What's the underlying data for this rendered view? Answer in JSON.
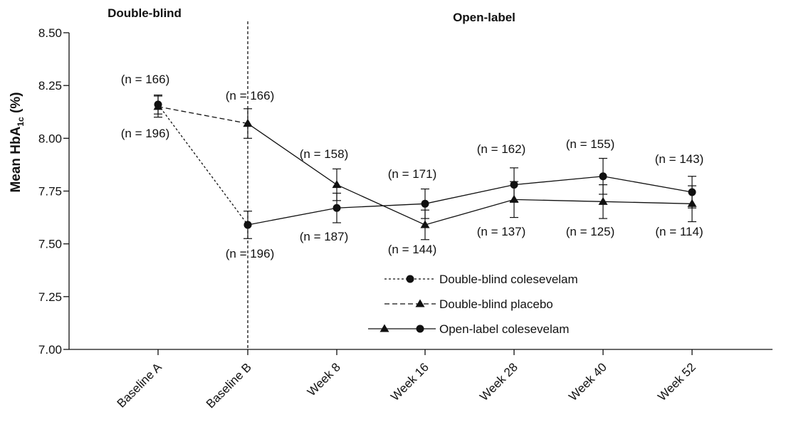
{
  "chart_data": {
    "type": "line",
    "ylabel": {
      "main": "Mean HbA",
      "sub": "1c",
      "suffix": " (%)"
    },
    "ylim": [
      7.0,
      8.5
    ],
    "yticks": [
      "7.00",
      "7.25",
      "7.50",
      "7.75",
      "8.00",
      "8.25",
      "8.50"
    ],
    "categories": [
      "Baseline A",
      "Baseline B",
      "Week 8",
      "Week 16",
      "Week 28",
      "Week 40",
      "Week 52"
    ],
    "phases": [
      "Double-blind",
      "Open-label"
    ],
    "series": [
      {
        "name": "Double-blind colesevelam",
        "marker": "circle",
        "line": "dotted",
        "x": [
          "Baseline A",
          "Baseline B"
        ],
        "values": [
          8.16,
          7.59
        ]
      },
      {
        "name": "Double-blind placebo",
        "marker": "triangle",
        "line": "dashed",
        "x": [
          "Baseline A",
          "Baseline B"
        ],
        "values": [
          8.15,
          8.07
        ]
      },
      {
        "name": "Open-label colesevelam",
        "marker": "triangle",
        "line": "solid",
        "x": [
          "Baseline B",
          "Week 8",
          "Week 16",
          "Week 28",
          "Week 40",
          "Week 52"
        ],
        "values": [
          8.07,
          7.78,
          7.59,
          7.71,
          7.7,
          7.69
        ],
        "err": [
          0.07,
          0.075,
          0.07,
          0.085,
          0.08,
          0.085
        ]
      },
      {
        "name": "Open-label colesevelam",
        "marker": "circle",
        "line": "solid",
        "x": [
          "Baseline B",
          "Week 8",
          "Week 16",
          "Week 28",
          "Week 40",
          "Week 52"
        ],
        "values": [
          7.59,
          7.67,
          7.69,
          7.78,
          7.82,
          7.745
        ],
        "err": [
          0.065,
          0.07,
          0.07,
          0.08,
          0.085,
          0.075
        ]
      }
    ],
    "baseline_a_err": [
      0.045,
      0.05
    ],
    "n_labels": [
      {
        "category": "Baseline A",
        "upper": "(n = 166)",
        "lower": "(n = 196)"
      },
      {
        "category": "Baseline B",
        "upper": "(n = 166)",
        "lower": "(n = 196)"
      },
      {
        "category": "Week 8",
        "upper": "(n = 158)",
        "lower": "(n = 187)"
      },
      {
        "category": "Week 16",
        "upper": "(n = 171)",
        "lower": "(n = 144)"
      },
      {
        "category": "Week 28",
        "upper": "(n = 162)",
        "lower": "(n = 137)"
      },
      {
        "category": "Week 40",
        "upper": "(n = 155)",
        "lower": "(n = 125)"
      },
      {
        "category": "Week 52",
        "upper": "(n = 143)",
        "lower": "(n = 114)"
      }
    ],
    "legend": [
      "Double-blind colesevelam",
      "Double-blind placebo",
      "Open-label colesevelam"
    ],
    "legend_position": "bottom-right",
    "grid": false,
    "divider_after": "Baseline B"
  }
}
